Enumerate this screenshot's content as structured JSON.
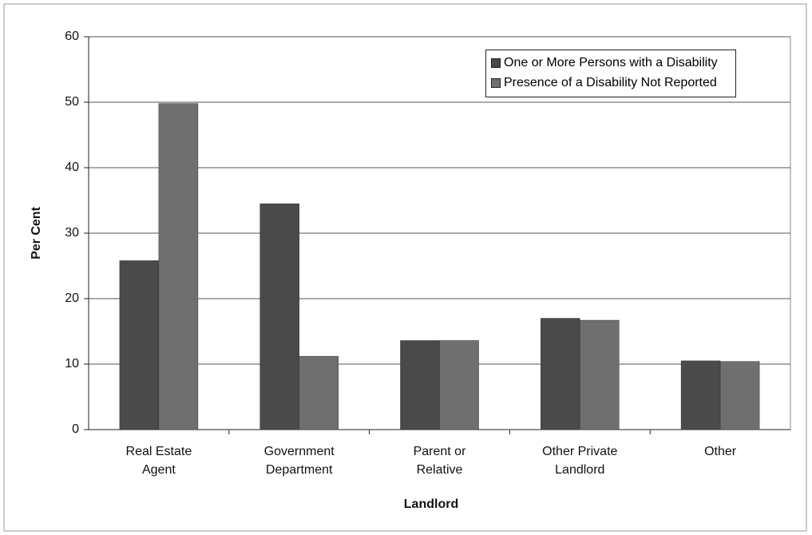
{
  "chart_data": {
    "type": "bar",
    "categories": [
      "Real Estate Agent",
      "Government Department",
      "Parent or Relative",
      "Other Private Landlord",
      "Other"
    ],
    "series": [
      {
        "name": "One or More Persons with a Disability",
        "color": "#4a4a4a",
        "values": [
          25.8,
          34.5,
          13.6,
          17,
          10.5
        ]
      },
      {
        "name": "Presence of a Disability Not Reported",
        "color": "#6f6f6f",
        "values": [
          49.8,
          11.2,
          13.6,
          16.7,
          10.4
        ]
      }
    ],
    "xlabel": "Landlord",
    "ylabel": "Per Cent",
    "ylim": [
      0,
      60
    ],
    "yticks": [
      0,
      10,
      20,
      30,
      40,
      50,
      60
    ],
    "grid": true,
    "legend": "upper right"
  }
}
